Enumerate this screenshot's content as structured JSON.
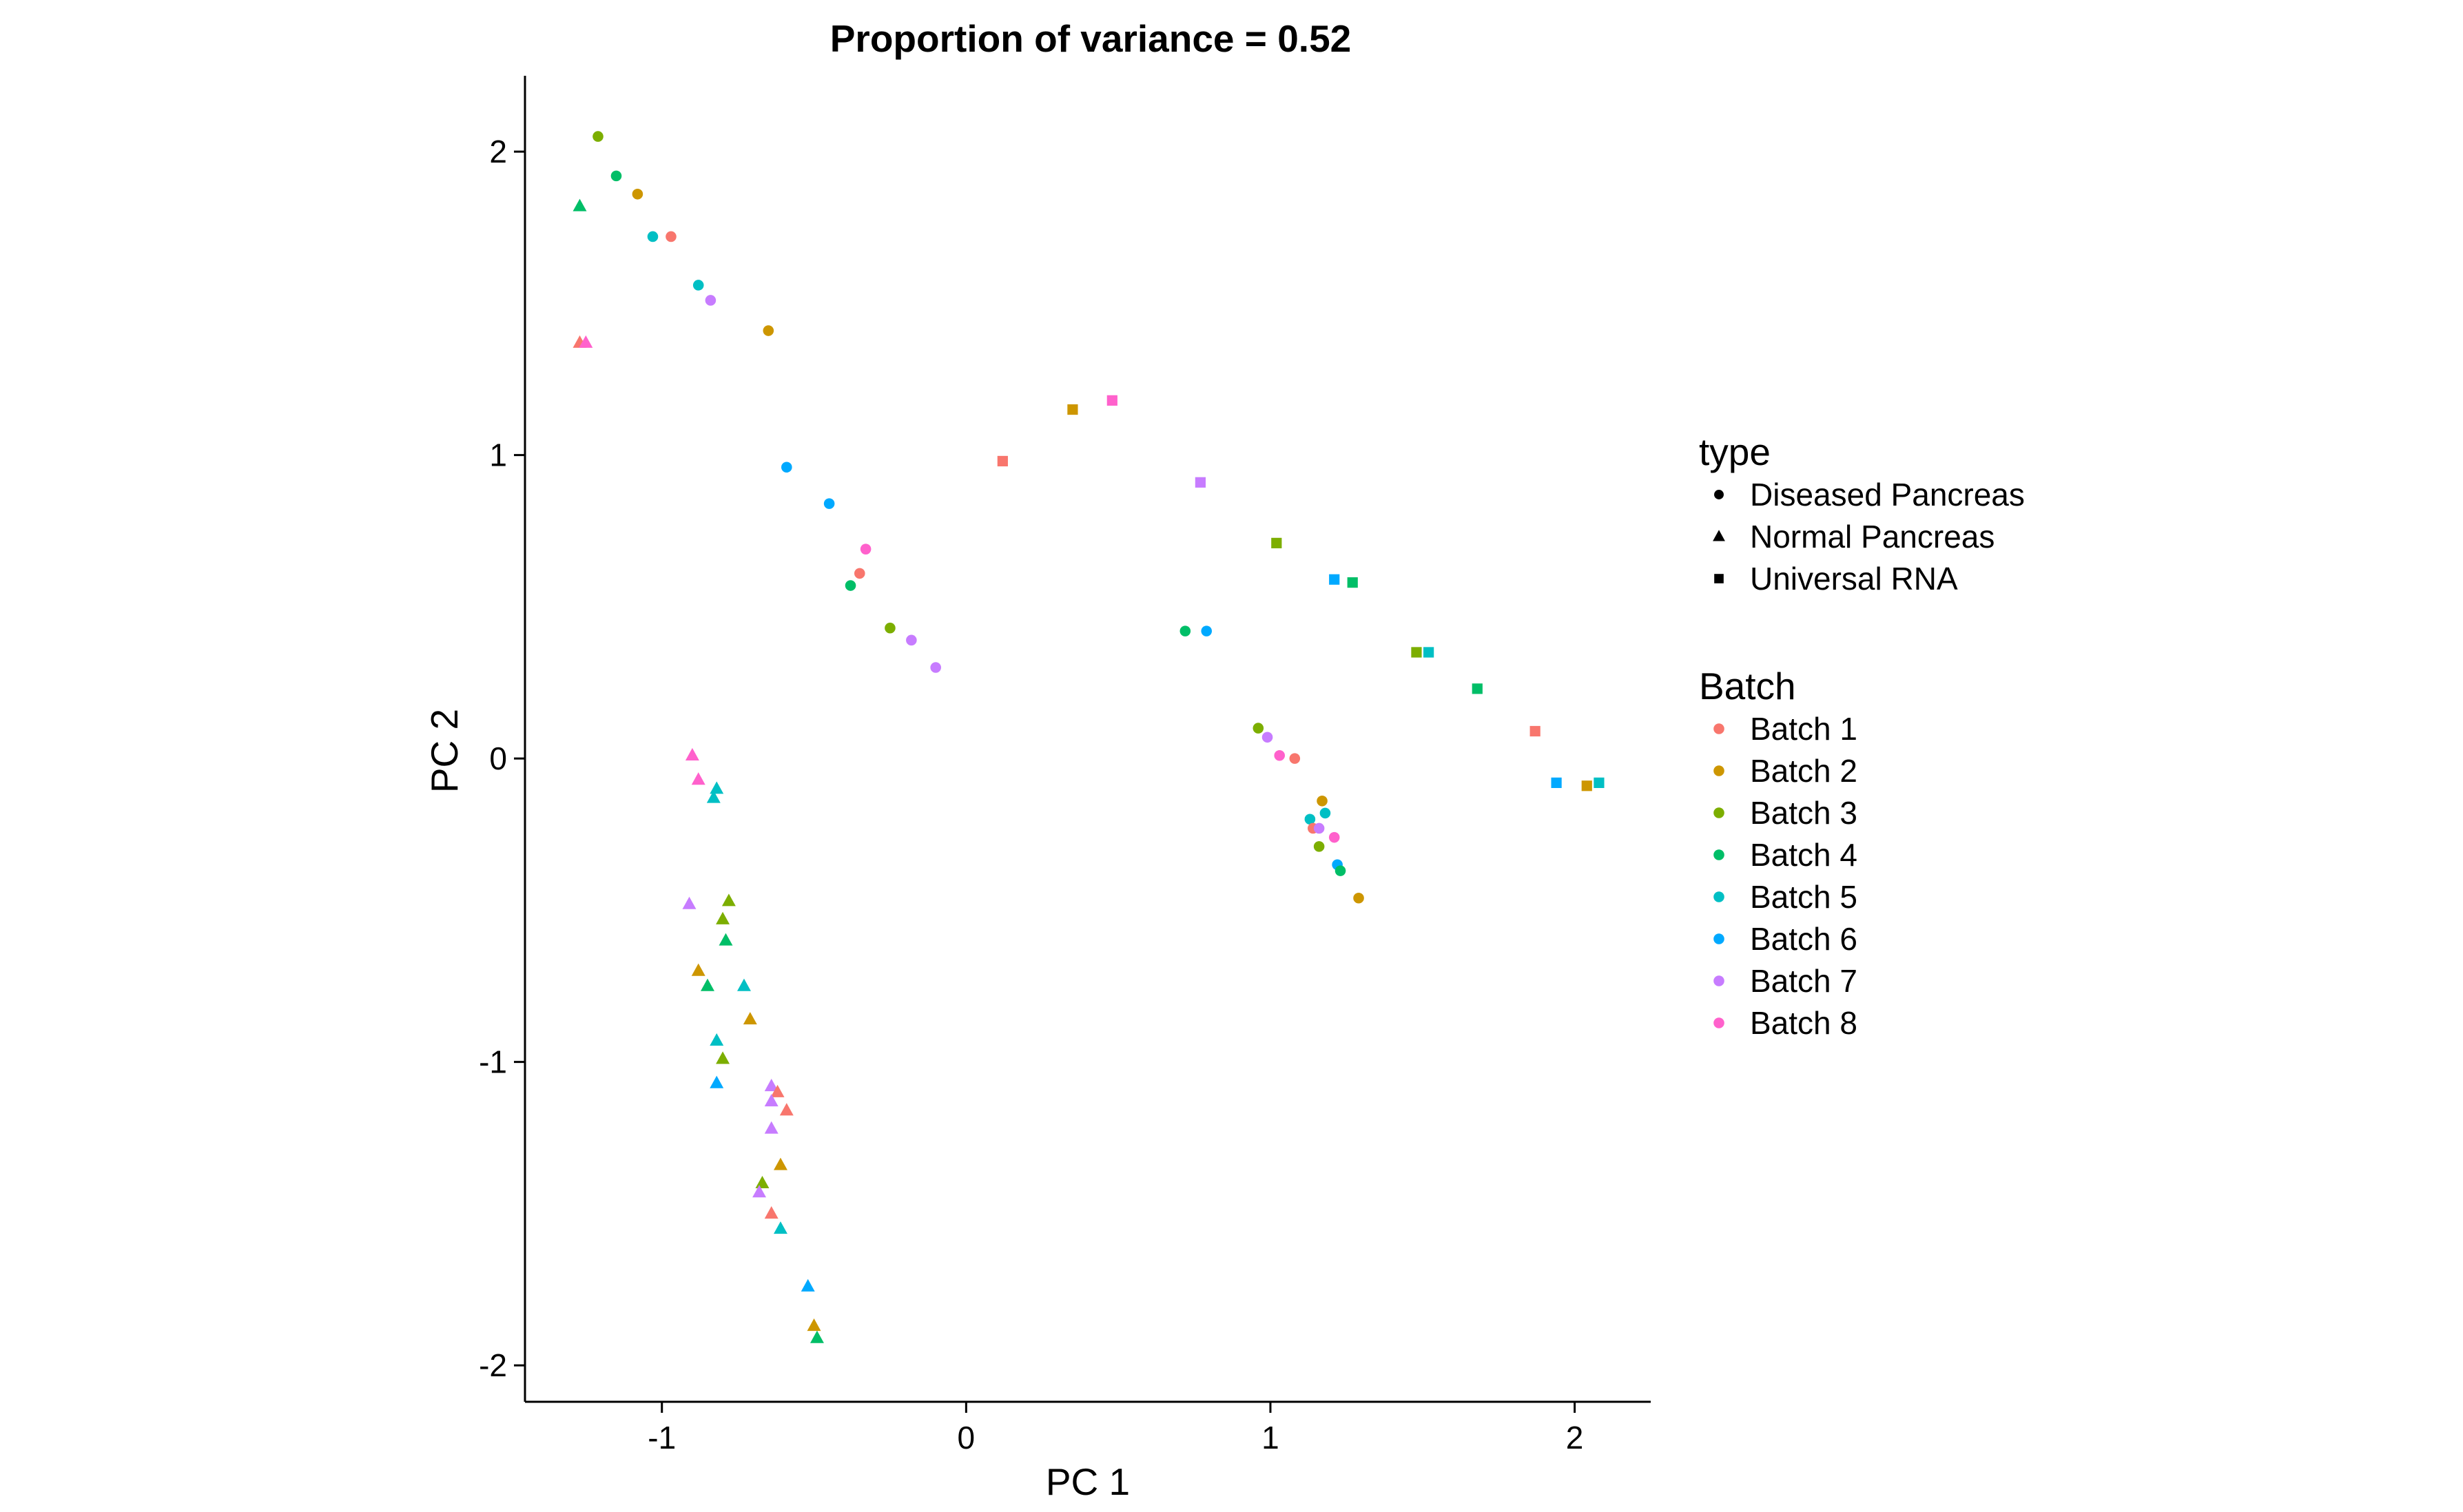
{
  "chart_data": {
    "type": "scatter",
    "title": "Proportion of variance = 0.52",
    "xlabel": "PC 1",
    "ylabel": "PC 2",
    "xlim": [
      -1.45,
      2.25
    ],
    "ylim": [
      -2.12,
      2.25
    ],
    "xticks": [
      -1,
      0,
      1,
      2
    ],
    "yticks": [
      -2,
      -1,
      0,
      1,
      2
    ],
    "xtick_labels": [
      "-1",
      "0",
      "1",
      "2"
    ],
    "ytick_labels": [
      "-2",
      "-1",
      "0",
      "1",
      "2"
    ],
    "grid": false,
    "legend_position": "right",
    "legends": {
      "shape": {
        "title": "type",
        "entries": [
          {
            "label": "Diseased Pancreas",
            "shape": "circle"
          },
          {
            "label": "Normal Pancreas",
            "shape": "triangle"
          },
          {
            "label": "Universal RNA",
            "shape": "square"
          }
        ]
      },
      "color": {
        "title": "Batch",
        "entries": [
          {
            "label": "Batch 1",
            "color": "#F8766D"
          },
          {
            "label": "Batch 2",
            "color": "#CD9600"
          },
          {
            "label": "Batch 3",
            "color": "#7CAE00"
          },
          {
            "label": "Batch 4",
            "color": "#00BE67"
          },
          {
            "label": "Batch 5",
            "color": "#00BFC4"
          },
          {
            "label": "Batch 6",
            "color": "#00A9FF"
          },
          {
            "label": "Batch 7",
            "color": "#C77CFF"
          },
          {
            "label": "Batch 8",
            "color": "#FF61CC"
          }
        ]
      }
    },
    "points": [
      {
        "x": -1.21,
        "y": 2.05,
        "type": "Diseased Pancreas",
        "batch": "Batch 3"
      },
      {
        "x": -1.15,
        "y": 1.92,
        "type": "Diseased Pancreas",
        "batch": "Batch 4"
      },
      {
        "x": -1.08,
        "y": 1.86,
        "type": "Diseased Pancreas",
        "batch": "Batch 2"
      },
      {
        "x": -1.03,
        "y": 1.72,
        "type": "Diseased Pancreas",
        "batch": "Batch 5"
      },
      {
        "x": -0.97,
        "y": 1.72,
        "type": "Diseased Pancreas",
        "batch": "Batch 1"
      },
      {
        "x": -0.88,
        "y": 1.56,
        "type": "Diseased Pancreas",
        "batch": "Batch 5"
      },
      {
        "x": -0.84,
        "y": 1.51,
        "type": "Diseased Pancreas",
        "batch": "Batch 7"
      },
      {
        "x": -0.65,
        "y": 1.41,
        "type": "Diseased Pancreas",
        "batch": "Batch 2"
      },
      {
        "x": -0.59,
        "y": 0.96,
        "type": "Diseased Pancreas",
        "batch": "Batch 6"
      },
      {
        "x": -0.45,
        "y": 0.84,
        "type": "Diseased Pancreas",
        "batch": "Batch 6"
      },
      {
        "x": -0.33,
        "y": 0.69,
        "type": "Diseased Pancreas",
        "batch": "Batch 8"
      },
      {
        "x": -0.35,
        "y": 0.61,
        "type": "Diseased Pancreas",
        "batch": "Batch 1"
      },
      {
        "x": -0.38,
        "y": 0.57,
        "type": "Diseased Pancreas",
        "batch": "Batch 4"
      },
      {
        "x": -0.25,
        "y": 0.43,
        "type": "Diseased Pancreas",
        "batch": "Batch 3"
      },
      {
        "x": -0.18,
        "y": 0.39,
        "type": "Diseased Pancreas",
        "batch": "Batch 7"
      },
      {
        "x": -0.1,
        "y": 0.3,
        "type": "Diseased Pancreas",
        "batch": "Batch 7"
      },
      {
        "x": 0.72,
        "y": 0.42,
        "type": "Diseased Pancreas",
        "batch": "Batch 4"
      },
      {
        "x": 0.79,
        "y": 0.42,
        "type": "Diseased Pancreas",
        "batch": "Batch 6"
      },
      {
        "x": 0.96,
        "y": 0.1,
        "type": "Diseased Pancreas",
        "batch": "Batch 3"
      },
      {
        "x": 0.99,
        "y": 0.07,
        "type": "Diseased Pancreas",
        "batch": "Batch 7"
      },
      {
        "x": 1.03,
        "y": 0.01,
        "type": "Diseased Pancreas",
        "batch": "Batch 8"
      },
      {
        "x": 1.08,
        "y": 0.0,
        "type": "Diseased Pancreas",
        "batch": "Batch 1"
      },
      {
        "x": 1.17,
        "y": -0.14,
        "type": "Diseased Pancreas",
        "batch": "Batch 2"
      },
      {
        "x": 1.18,
        "y": -0.18,
        "type": "Diseased Pancreas",
        "batch": "Batch 5"
      },
      {
        "x": 1.13,
        "y": -0.2,
        "type": "Diseased Pancreas",
        "batch": "Batch 5"
      },
      {
        "x": 1.14,
        "y": -0.23,
        "type": "Diseased Pancreas",
        "batch": "Batch 1"
      },
      {
        "x": 1.16,
        "y": -0.23,
        "type": "Diseased Pancreas",
        "batch": "Batch 7"
      },
      {
        "x": 1.21,
        "y": -0.26,
        "type": "Diseased Pancreas",
        "batch": "Batch 8"
      },
      {
        "x": 1.16,
        "y": -0.29,
        "type": "Diseased Pancreas",
        "batch": "Batch 3"
      },
      {
        "x": 1.22,
        "y": -0.35,
        "type": "Diseased Pancreas",
        "batch": "Batch 6"
      },
      {
        "x": 1.23,
        "y": -0.37,
        "type": "Diseased Pancreas",
        "batch": "Batch 4"
      },
      {
        "x": 1.29,
        "y": -0.46,
        "type": "Diseased Pancreas",
        "batch": "Batch 2"
      },
      {
        "x": -1.27,
        "y": 1.82,
        "type": "Normal Pancreas",
        "batch": "Batch 4"
      },
      {
        "x": -1.27,
        "y": 1.37,
        "type": "Normal Pancreas",
        "batch": "Batch 1"
      },
      {
        "x": -1.25,
        "y": 1.37,
        "type": "Normal Pancreas",
        "batch": "Batch 8"
      },
      {
        "x": -0.9,
        "y": 0.01,
        "type": "Normal Pancreas",
        "batch": "Batch 8"
      },
      {
        "x": -0.88,
        "y": -0.07,
        "type": "Normal Pancreas",
        "batch": "Batch 8"
      },
      {
        "x": -0.82,
        "y": -0.1,
        "type": "Normal Pancreas",
        "batch": "Batch 5"
      },
      {
        "x": -0.83,
        "y": -0.13,
        "type": "Normal Pancreas",
        "batch": "Batch 5"
      },
      {
        "x": -0.91,
        "y": -0.48,
        "type": "Normal Pancreas",
        "batch": "Batch 7"
      },
      {
        "x": -0.78,
        "y": -0.47,
        "type": "Normal Pancreas",
        "batch": "Batch 3"
      },
      {
        "x": -0.8,
        "y": -0.53,
        "type": "Normal Pancreas",
        "batch": "Batch 3"
      },
      {
        "x": -0.79,
        "y": -0.6,
        "type": "Normal Pancreas",
        "batch": "Batch 4"
      },
      {
        "x": -0.88,
        "y": -0.7,
        "type": "Normal Pancreas",
        "batch": "Batch 2"
      },
      {
        "x": -0.85,
        "y": -0.75,
        "type": "Normal Pancreas",
        "batch": "Batch 4"
      },
      {
        "x": -0.73,
        "y": -0.75,
        "type": "Normal Pancreas",
        "batch": "Batch 5"
      },
      {
        "x": -0.71,
        "y": -0.86,
        "type": "Normal Pancreas",
        "batch": "Batch 2"
      },
      {
        "x": -0.82,
        "y": -0.93,
        "type": "Normal Pancreas",
        "batch": "Batch 5"
      },
      {
        "x": -0.8,
        "y": -0.99,
        "type": "Normal Pancreas",
        "batch": "Batch 3"
      },
      {
        "x": -0.82,
        "y": -1.07,
        "type": "Normal Pancreas",
        "batch": "Batch 6"
      },
      {
        "x": -0.64,
        "y": -1.08,
        "type": "Normal Pancreas",
        "batch": "Batch 7"
      },
      {
        "x": -0.62,
        "y": -1.1,
        "type": "Normal Pancreas",
        "batch": "Batch 1"
      },
      {
        "x": -0.64,
        "y": -1.13,
        "type": "Normal Pancreas",
        "batch": "Batch 7"
      },
      {
        "x": -0.59,
        "y": -1.16,
        "type": "Normal Pancreas",
        "batch": "Batch 1"
      },
      {
        "x": -0.64,
        "y": -1.22,
        "type": "Normal Pancreas",
        "batch": "Batch 7"
      },
      {
        "x": -0.61,
        "y": -1.34,
        "type": "Normal Pancreas",
        "batch": "Batch 2"
      },
      {
        "x": -0.67,
        "y": -1.4,
        "type": "Normal Pancreas",
        "batch": "Batch 3"
      },
      {
        "x": -0.68,
        "y": -1.43,
        "type": "Normal Pancreas",
        "batch": "Batch 7"
      },
      {
        "x": -0.64,
        "y": -1.5,
        "type": "Normal Pancreas",
        "batch": "Batch 1"
      },
      {
        "x": -0.61,
        "y": -1.55,
        "type": "Normal Pancreas",
        "batch": "Batch 5"
      },
      {
        "x": -0.52,
        "y": -1.74,
        "type": "Normal Pancreas",
        "batch": "Batch 6"
      },
      {
        "x": -0.5,
        "y": -1.87,
        "type": "Normal Pancreas",
        "batch": "Batch 2"
      },
      {
        "x": -0.49,
        "y": -1.91,
        "type": "Normal Pancreas",
        "batch": "Batch 4"
      },
      {
        "x": 0.12,
        "y": 0.98,
        "type": "Universal RNA",
        "batch": "Batch 1"
      },
      {
        "x": 0.35,
        "y": 1.15,
        "type": "Universal RNA",
        "batch": "Batch 2"
      },
      {
        "x": 0.48,
        "y": 1.18,
        "type": "Universal RNA",
        "batch": "Batch 8"
      },
      {
        "x": 0.77,
        "y": 0.91,
        "type": "Universal RNA",
        "batch": "Batch 7"
      },
      {
        "x": 1.02,
        "y": 0.71,
        "type": "Universal RNA",
        "batch": "Batch 3"
      },
      {
        "x": 1.21,
        "y": 0.59,
        "type": "Universal RNA",
        "batch": "Batch 6"
      },
      {
        "x": 1.27,
        "y": 0.58,
        "type": "Universal RNA",
        "batch": "Batch 4"
      },
      {
        "x": 1.48,
        "y": 0.35,
        "type": "Universal RNA",
        "batch": "Batch 3"
      },
      {
        "x": 1.52,
        "y": 0.35,
        "type": "Universal RNA",
        "batch": "Batch 5"
      },
      {
        "x": 1.68,
        "y": 0.23,
        "type": "Universal RNA",
        "batch": "Batch 4"
      },
      {
        "x": 1.87,
        "y": 0.09,
        "type": "Universal RNA",
        "batch": "Batch 1"
      },
      {
        "x": 1.94,
        "y": -0.08,
        "type": "Universal RNA",
        "batch": "Batch 6"
      },
      {
        "x": 2.04,
        "y": -0.09,
        "type": "Universal RNA",
        "batch": "Batch 2"
      },
      {
        "x": 2.08,
        "y": -0.08,
        "type": "Universal RNA",
        "batch": "Batch 5"
      }
    ]
  }
}
